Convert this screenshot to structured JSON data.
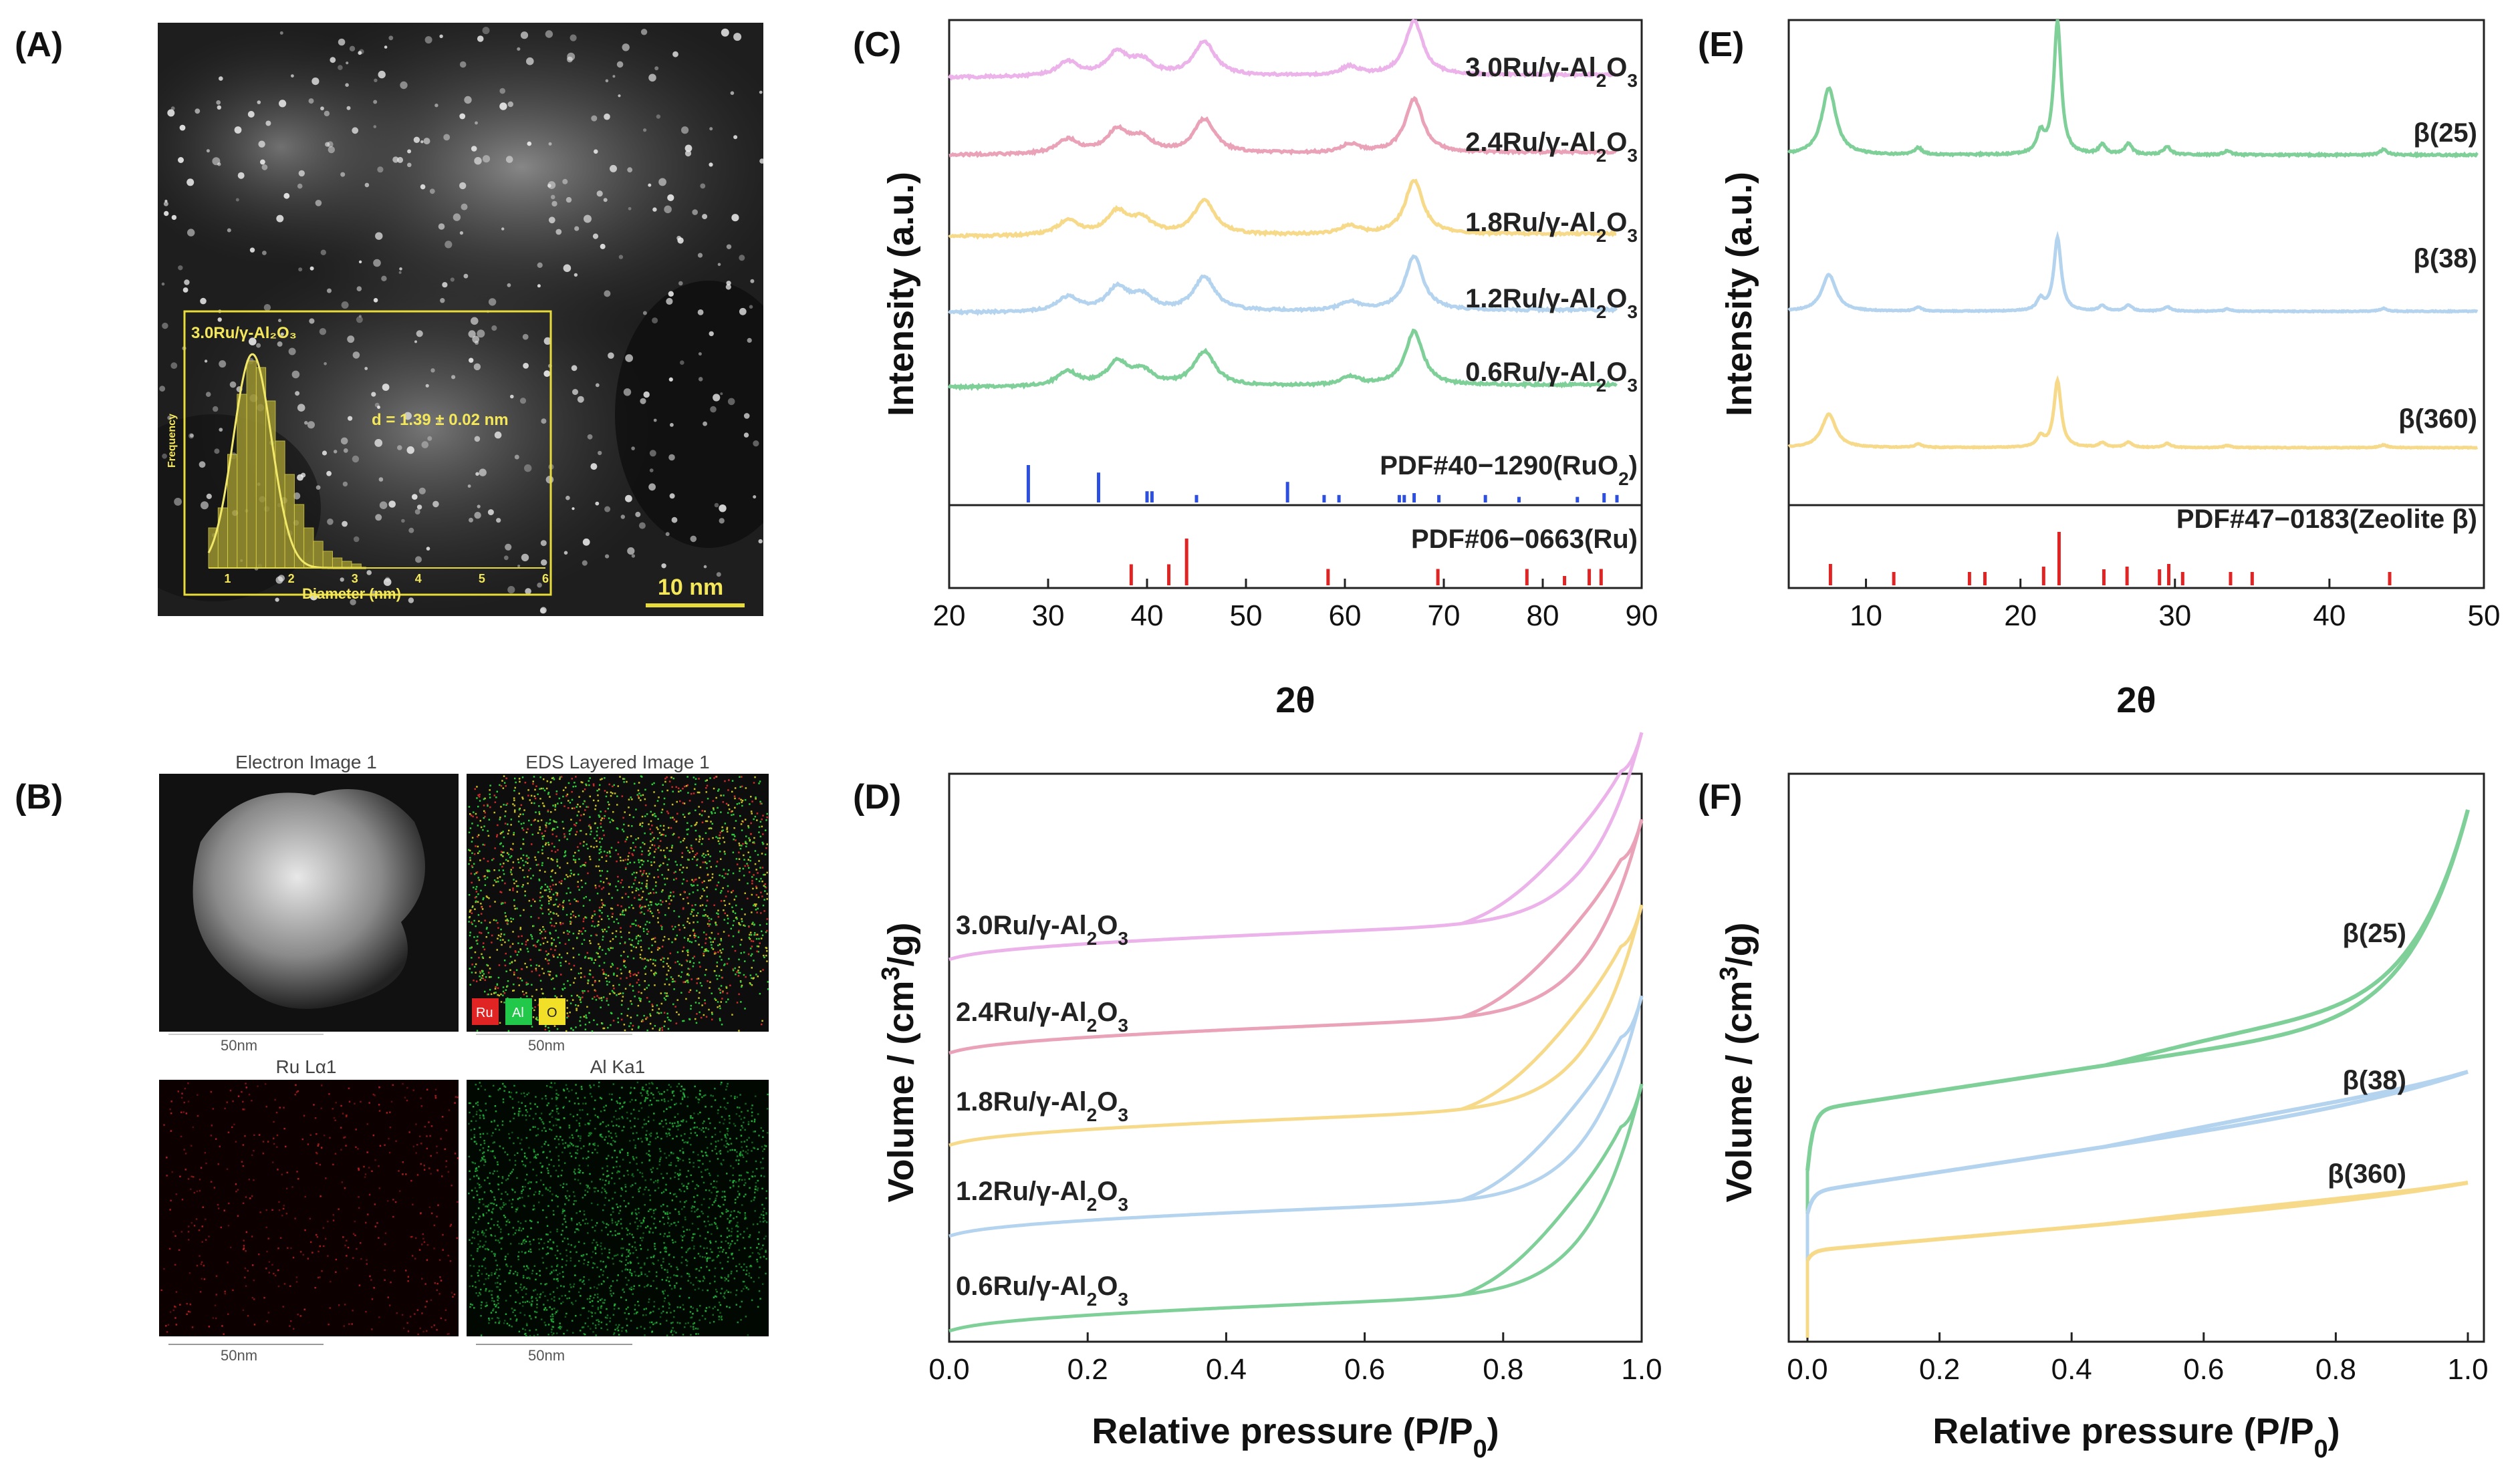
{
  "panels": {
    "A": {
      "label": "(A)",
      "inset_title": "3.0Ru/γ-Al₂O₃",
      "inset_ylabel": "Frequency",
      "inset_xlabel": "Diameter (nm)",
      "inset_stat": "d = 1.39 ± 0.02 nm",
      "inset_xticks": [
        "1",
        "2",
        "3",
        "4",
        "5",
        "6"
      ],
      "scale_bar": "10 nm"
    },
    "B": {
      "label": "(B)",
      "tiles": [
        {
          "title": "Electron Image 1",
          "scale": "50nm"
        },
        {
          "title": "EDS Layered Image 1",
          "scale": "50nm",
          "legend": [
            "Ru",
            "Al",
            "O"
          ]
        },
        {
          "title": "Ru Lα1",
          "scale": "50nm"
        },
        {
          "title": "Al Ka1",
          "scale": "50nm"
        }
      ]
    },
    "C": {
      "label": "(C)"
    },
    "D": {
      "label": "(D)"
    },
    "E": {
      "label": "(E)"
    },
    "F": {
      "label": "(F)"
    }
  },
  "colors": {
    "green": "#7fcf98",
    "blue": "#b4d3ee",
    "yellow": "#f7d98a",
    "pink": "#eaa2b8",
    "violet": "#ecb2ea",
    "ref_blue": "#2d4fe0",
    "ref_red": "#e02424"
  },
  "chart_data": [
    {
      "id": "C",
      "type": "line",
      "title": "",
      "xlabel": "2θ",
      "ylabel": "Intensity (a.u.)",
      "xlim": [
        20,
        90
      ],
      "xticks": [
        20,
        30,
        40,
        50,
        60,
        70,
        80,
        90
      ],
      "series": [
        {
          "name": "0.6Ru/γ-Al₂O₃",
          "color": "#7fcf98",
          "peaks": [
            [
              32,
              0.25
            ],
            [
              37,
              0.4
            ],
            [
              39.5,
              0.25
            ],
            [
              45.8,
              0.6
            ],
            [
              60.5,
              0.15
            ],
            [
              67,
              0.95
            ]
          ]
        },
        {
          "name": "1.2Ru/γ-Al₂O₃",
          "color": "#b4d3ee",
          "peaks": [
            [
              32,
              0.25
            ],
            [
              37,
              0.4
            ],
            [
              39.5,
              0.25
            ],
            [
              45.8,
              0.6
            ],
            [
              60.5,
              0.15
            ],
            [
              67,
              0.95
            ]
          ]
        },
        {
          "name": "1.8Ru/γ-Al₂O₃",
          "color": "#f7d98a",
          "peaks": [
            [
              32,
              0.25
            ],
            [
              37,
              0.4
            ],
            [
              39.5,
              0.25
            ],
            [
              45.8,
              0.6
            ],
            [
              60.5,
              0.15
            ],
            [
              67,
              0.95
            ]
          ]
        },
        {
          "name": "2.4Ru/γ-Al₂O₃",
          "color": "#eaa2b8",
          "peaks": [
            [
              32,
              0.25
            ],
            [
              37,
              0.4
            ],
            [
              39.5,
              0.25
            ],
            [
              45.8,
              0.6
            ],
            [
              60.5,
              0.15
            ],
            [
              67,
              0.95
            ]
          ]
        },
        {
          "name": "3.0Ru/γ-Al₂O₃",
          "color": "#ecb2ea",
          "peaks": [
            [
              32,
              0.25
            ],
            [
              37,
              0.4
            ],
            [
              39.5,
              0.25
            ],
            [
              45.8,
              0.6
            ],
            [
              60.5,
              0.15
            ],
            [
              67,
              0.95
            ]
          ]
        }
      ],
      "references": [
        {
          "name": "PDF#40−1290(RuO₂)",
          "color": "#2d4fe0",
          "lines": [
            [
              28.0,
              1.0
            ],
            [
              35.1,
              0.8
            ],
            [
              40.0,
              0.3
            ],
            [
              40.5,
              0.3
            ],
            [
              45.0,
              0.2
            ],
            [
              54.2,
              0.55
            ],
            [
              57.9,
              0.2
            ],
            [
              59.4,
              0.2
            ],
            [
              65.5,
              0.2
            ],
            [
              66.0,
              0.2
            ],
            [
              67.0,
              0.25
            ],
            [
              69.5,
              0.2
            ],
            [
              74.2,
              0.2
            ],
            [
              77.6,
              0.15
            ],
            [
              83.5,
              0.15
            ],
            [
              86.2,
              0.25
            ],
            [
              87.5,
              0.2
            ]
          ]
        },
        {
          "name": "PDF#06−0663(Ru)",
          "color": "#e02424",
          "lines": [
            [
              38.4,
              0.45
            ],
            [
              42.2,
              0.45
            ],
            [
              44.0,
              1.0
            ],
            [
              58.3,
              0.35
            ],
            [
              69.4,
              0.35
            ],
            [
              78.4,
              0.35
            ],
            [
              82.2,
              0.2
            ],
            [
              84.7,
              0.35
            ],
            [
              85.9,
              0.35
            ]
          ]
        }
      ]
    },
    {
      "id": "D",
      "type": "line",
      "title": "",
      "xlabel": "Relative pressure (P/P₀)",
      "ylabel": "Volume / (cm³/g)",
      "xlim": [
        0,
        1.0
      ],
      "xticks": [
        "0.0",
        "0.2",
        "0.4",
        "0.6",
        "0.8",
        "1.0"
      ],
      "series": [
        {
          "name": "0.6Ru/γ-Al₂O₃",
          "color": "#7fcf98"
        },
        {
          "name": "1.2Ru/γ-Al₂O₃",
          "color": "#b4d3ee"
        },
        {
          "name": "1.8Ru/γ-Al₂O₃",
          "color": "#f7d98a"
        },
        {
          "name": "2.4Ru/γ-Al₂O₃",
          "color": "#eaa2b8"
        },
        {
          "name": "3.0Ru/γ-Al₂O₃",
          "color": "#ecb2ea"
        }
      ]
    },
    {
      "id": "E",
      "type": "line",
      "title": "",
      "xlabel": "2θ",
      "ylabel": "Intensity (a.u.)",
      "xlim": [
        5,
        50
      ],
      "xticks": [
        10,
        20,
        30,
        40,
        50
      ],
      "series": [
        {
          "name": "β(25)",
          "color": "#7fcf98",
          "scale": 1.0
        },
        {
          "name": "β(38)",
          "color": "#b4d3ee",
          "scale": 0.55
        },
        {
          "name": "β(360)",
          "color": "#f7d98a",
          "scale": 0.5
        }
      ],
      "peaks": [
        [
          7.6,
          0.5
        ],
        [
          13.4,
          0.05
        ],
        [
          21.3,
          0.15
        ],
        [
          22.4,
          1.0
        ],
        [
          25.3,
          0.07
        ],
        [
          27.0,
          0.08
        ],
        [
          29.5,
          0.06
        ],
        [
          33.4,
          0.03
        ],
        [
          43.5,
          0.04
        ]
      ],
      "references": [
        {
          "name": "PDF#47−0183(Zeolite β)",
          "color": "#e02424",
          "lines": [
            [
              7.7,
              0.4
            ],
            [
              11.8,
              0.25
            ],
            [
              16.7,
              0.25
            ],
            [
              17.7,
              0.25
            ],
            [
              21.5,
              0.35
            ],
            [
              22.5,
              1.0
            ],
            [
              25.4,
              0.3
            ],
            [
              26.9,
              0.35
            ],
            [
              29.0,
              0.3
            ],
            [
              29.6,
              0.4
            ],
            [
              30.5,
              0.25
            ],
            [
              33.6,
              0.25
            ],
            [
              35.0,
              0.25
            ],
            [
              43.9,
              0.25
            ]
          ]
        }
      ]
    },
    {
      "id": "F",
      "type": "line",
      "title": "",
      "xlabel": "Relative pressure (P/P₀)",
      "ylabel": "Volume / (cm³/g)",
      "xlim": [
        0,
        1.0
      ],
      "xticks": [
        "0.0",
        "0.2",
        "0.4",
        "0.6",
        "0.8",
        "1.0"
      ],
      "series": [
        {
          "name": "β(25)",
          "color": "#7fcf98"
        },
        {
          "name": "β(38)",
          "color": "#b4d3ee"
        },
        {
          "name": "β(360)",
          "color": "#f7d98a"
        }
      ]
    }
  ]
}
